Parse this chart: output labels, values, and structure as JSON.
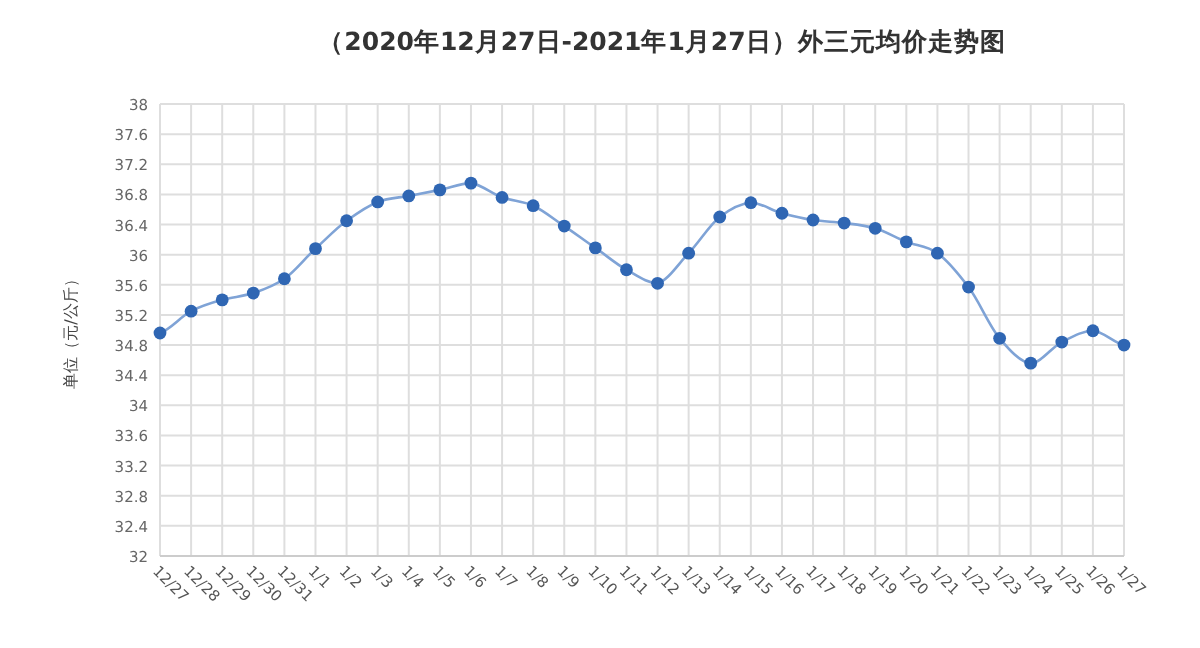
{
  "chart_data": {
    "type": "line",
    "title": "（2020年12月27日-2021年1月27日）外三元均价走势图",
    "ylabel": "单位（元/公斤）",
    "categories": [
      "12/27",
      "12/28",
      "12/29",
      "12/30",
      "12/31",
      "1/1",
      "1/2",
      "1/3",
      "1/4",
      "1/5",
      "1/6",
      "1/7",
      "1/8",
      "1/9",
      "1/10",
      "1/11",
      "1/12",
      "1/13",
      "1/14",
      "1/15",
      "1/16",
      "1/17",
      "1/18",
      "1/19",
      "1/20",
      "1/21",
      "1/22",
      "1/23",
      "1/24",
      "1/25",
      "1/26",
      "1/27"
    ],
    "series": [
      {
        "color": "#2f66b3",
        "values": [
          34.96,
          35.25,
          35.4,
          35.49,
          35.68,
          36.08,
          36.45,
          36.7,
          36.78,
          36.86,
          36.95,
          36.76,
          36.65,
          36.38,
          36.09,
          35.8,
          35.62,
          36.02,
          36.5,
          36.69,
          36.55,
          36.46,
          36.42,
          36.35,
          36.17,
          36.02,
          35.57,
          34.89,
          34.56,
          34.84,
          34.99,
          34.8
        ]
      }
    ],
    "ylim": [
      32,
      38
    ],
    "yticks": [
      32,
      32.4,
      32.8,
      33.2,
      33.6,
      34,
      34.4,
      34.8,
      35.2,
      35.6,
      36,
      36.4,
      36.8,
      37.2,
      37.6,
      38
    ],
    "grid": true,
    "marker": "circle",
    "line_style": "solid"
  }
}
